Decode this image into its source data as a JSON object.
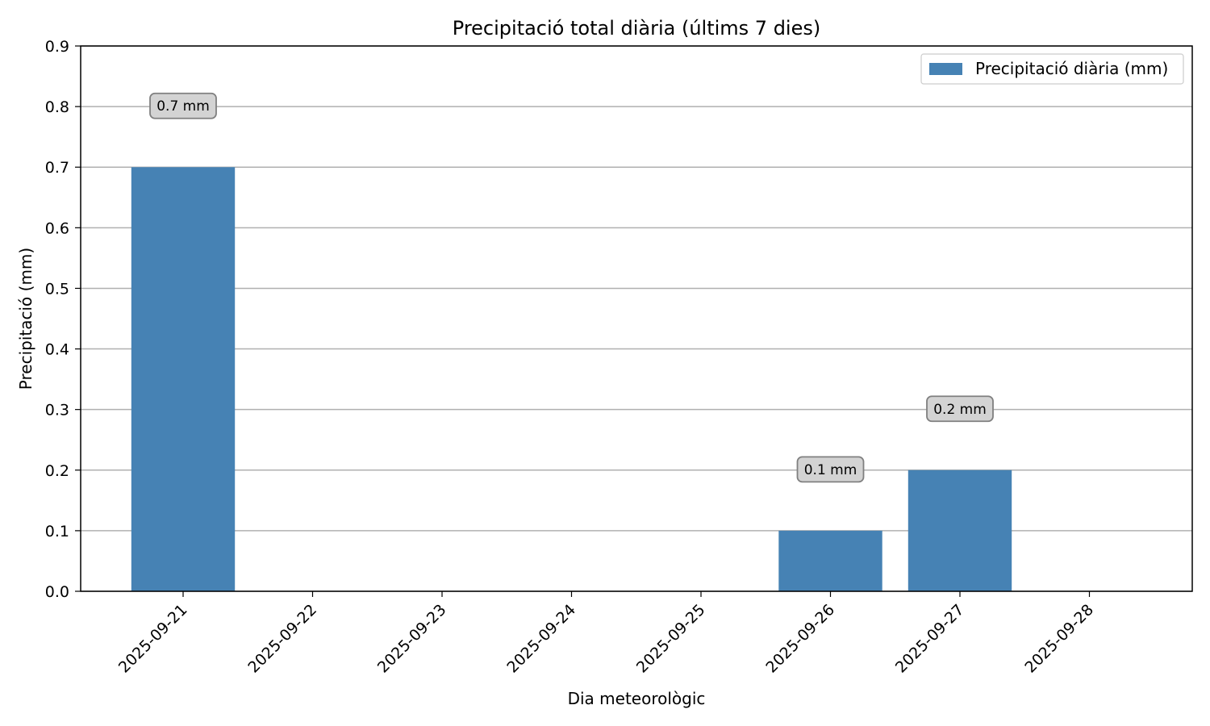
{
  "chart_data": {
    "type": "bar",
    "title": "Precipitació total diària (últims 7 dies)",
    "xlabel": "Dia meteorològic",
    "ylabel": "Precipitació (mm)",
    "ylim": [
      0,
      0.9
    ],
    "yticks": [
      "0.0",
      "0.1",
      "0.2",
      "0.3",
      "0.4",
      "0.5",
      "0.6",
      "0.7",
      "0.8",
      "0.9"
    ],
    "grid": "horizontal",
    "legend_position": "top-right",
    "categories": [
      "2025-09-21",
      "2025-09-22",
      "2025-09-23",
      "2025-09-24",
      "2025-09-25",
      "2025-09-26",
      "2025-09-27",
      "2025-09-28"
    ],
    "series": [
      {
        "name": "Precipitació diària (mm)",
        "values": [
          0.7,
          0,
          0,
          0,
          0,
          0.1,
          0.2,
          0
        ],
        "color": "#4682b4"
      }
    ],
    "annotations": [
      {
        "category": "2025-09-21",
        "text": "0.7 mm"
      },
      {
        "category": "2025-09-26",
        "text": "0.1 mm"
      },
      {
        "category": "2025-09-27",
        "text": "0.2 mm"
      }
    ]
  }
}
